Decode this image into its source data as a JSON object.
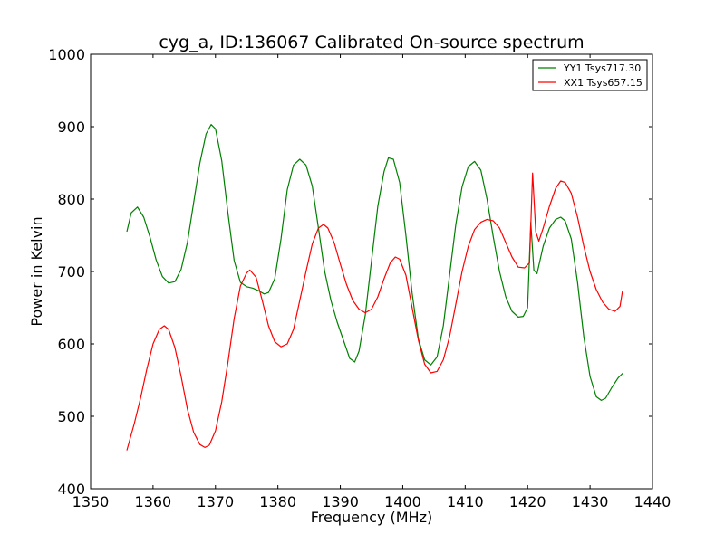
{
  "chart_data": {
    "type": "line",
    "title": "cyg_a, ID:136067 Calibrated On-source spectrum",
    "xlabel": "Frequency (MHz)",
    "ylabel": "Power in Kelvin",
    "xlim": [
      1350,
      1440
    ],
    "ylim": [
      400,
      1000
    ],
    "xticks": [
      "1350",
      "1360",
      "1370",
      "1380",
      "1390",
      "1400",
      "1410",
      "1420",
      "1430",
      "1440"
    ],
    "yticks": [
      "400",
      "500",
      "600",
      "700",
      "800",
      "900",
      "1000"
    ],
    "grid": false,
    "legend_position": "top-right",
    "series": [
      {
        "name": "YY1 Tsys717.30",
        "color": "#008000",
        "points": [
          [
            1355.8,
            755
          ],
          [
            1356.5,
            781
          ],
          [
            1357.5,
            789
          ],
          [
            1358.5,
            775
          ],
          [
            1359.5,
            748
          ],
          [
            1360.5,
            716
          ],
          [
            1361.5,
            693
          ],
          [
            1362.5,
            684
          ],
          [
            1363.5,
            686
          ],
          [
            1364.5,
            703
          ],
          [
            1365.5,
            740
          ],
          [
            1366.5,
            795
          ],
          [
            1367.5,
            850
          ],
          [
            1368.5,
            890
          ],
          [
            1369.3,
            903
          ],
          [
            1370.0,
            897
          ],
          [
            1371.0,
            853
          ],
          [
            1372.0,
            780
          ],
          [
            1373.0,
            715
          ],
          [
            1374.0,
            685
          ],
          [
            1375.0,
            679
          ],
          [
            1376.0,
            677
          ],
          [
            1377.0,
            673
          ],
          [
            1377.8,
            669
          ],
          [
            1378.5,
            671
          ],
          [
            1379.5,
            690
          ],
          [
            1380.5,
            745
          ],
          [
            1381.5,
            813
          ],
          [
            1382.5,
            847
          ],
          [
            1383.5,
            855
          ],
          [
            1384.5,
            847
          ],
          [
            1385.5,
            818
          ],
          [
            1386.5,
            760
          ],
          [
            1387.5,
            700
          ],
          [
            1388.5,
            660
          ],
          [
            1389.5,
            630
          ],
          [
            1390.5,
            605
          ],
          [
            1391.5,
            580
          ],
          [
            1392.3,
            575
          ],
          [
            1393.0,
            590
          ],
          [
            1394.0,
            640
          ],
          [
            1395.0,
            715
          ],
          [
            1396.0,
            790
          ],
          [
            1397.0,
            838
          ],
          [
            1397.7,
            857
          ],
          [
            1398.5,
            855
          ],
          [
            1399.5,
            823
          ],
          [
            1400.5,
            750
          ],
          [
            1401.5,
            670
          ],
          [
            1402.5,
            607
          ],
          [
            1403.5,
            578
          ],
          [
            1404.5,
            571
          ],
          [
            1405.5,
            582
          ],
          [
            1406.5,
            625
          ],
          [
            1407.5,
            695
          ],
          [
            1408.5,
            765
          ],
          [
            1409.5,
            817
          ],
          [
            1410.5,
            845
          ],
          [
            1411.5,
            852
          ],
          [
            1412.5,
            840
          ],
          [
            1413.5,
            800
          ],
          [
            1414.5,
            748
          ],
          [
            1415.5,
            700
          ],
          [
            1416.5,
            665
          ],
          [
            1417.5,
            645
          ],
          [
            1418.5,
            637
          ],
          [
            1419.3,
            638
          ],
          [
            1420.0,
            650
          ],
          [
            1420.5,
            768
          ],
          [
            1421.0,
            702
          ],
          [
            1421.5,
            697
          ],
          [
            1422.5,
            735
          ],
          [
            1423.5,
            760
          ],
          [
            1424.5,
            772
          ],
          [
            1425.3,
            775
          ],
          [
            1426.0,
            770
          ],
          [
            1427.0,
            745
          ],
          [
            1428.0,
            685
          ],
          [
            1429.0,
            610
          ],
          [
            1430.0,
            555
          ],
          [
            1431.0,
            527
          ],
          [
            1431.8,
            522
          ],
          [
            1432.5,
            525
          ],
          [
            1433.5,
            540
          ],
          [
            1434.5,
            553
          ],
          [
            1435.3,
            560
          ]
        ]
      },
      {
        "name": "XX1 Tsys657.15",
        "color": "#ff0000",
        "points": [
          [
            1355.8,
            453
          ],
          [
            1357.0,
            490
          ],
          [
            1358.0,
            525
          ],
          [
            1359.0,
            565
          ],
          [
            1360.0,
            600
          ],
          [
            1361.0,
            620
          ],
          [
            1361.8,
            625
          ],
          [
            1362.5,
            620
          ],
          [
            1363.5,
            595
          ],
          [
            1364.5,
            555
          ],
          [
            1365.5,
            510
          ],
          [
            1366.5,
            478
          ],
          [
            1367.5,
            461
          ],
          [
            1368.3,
            457
          ],
          [
            1369.0,
            460
          ],
          [
            1370.0,
            480
          ],
          [
            1371.0,
            520
          ],
          [
            1372.0,
            575
          ],
          [
            1373.0,
            635
          ],
          [
            1374.0,
            680
          ],
          [
            1375.0,
            698
          ],
          [
            1375.5,
            702
          ],
          [
            1376.5,
            692
          ],
          [
            1377.5,
            660
          ],
          [
            1378.5,
            625
          ],
          [
            1379.5,
            603
          ],
          [
            1380.5,
            596
          ],
          [
            1381.5,
            600
          ],
          [
            1382.5,
            620
          ],
          [
            1383.5,
            660
          ],
          [
            1384.5,
            700
          ],
          [
            1385.5,
            738
          ],
          [
            1386.5,
            760
          ],
          [
            1387.3,
            765
          ],
          [
            1388.0,
            760
          ],
          [
            1389.0,
            740
          ],
          [
            1390.0,
            710
          ],
          [
            1391.0,
            682
          ],
          [
            1392.0,
            660
          ],
          [
            1393.0,
            648
          ],
          [
            1394.0,
            643
          ],
          [
            1395.0,
            648
          ],
          [
            1396.0,
            665
          ],
          [
            1397.0,
            690
          ],
          [
            1398.0,
            712
          ],
          [
            1398.8,
            720
          ],
          [
            1399.5,
            717
          ],
          [
            1400.5,
            695
          ],
          [
            1401.5,
            650
          ],
          [
            1402.5,
            605
          ],
          [
            1403.5,
            572
          ],
          [
            1404.5,
            560
          ],
          [
            1405.5,
            562
          ],
          [
            1406.5,
            578
          ],
          [
            1407.5,
            610
          ],
          [
            1408.5,
            655
          ],
          [
            1409.5,
            700
          ],
          [
            1410.5,
            735
          ],
          [
            1411.5,
            758
          ],
          [
            1412.5,
            768
          ],
          [
            1413.5,
            772
          ],
          [
            1414.5,
            770
          ],
          [
            1415.5,
            760
          ],
          [
            1416.5,
            740
          ],
          [
            1417.5,
            720
          ],
          [
            1418.5,
            706
          ],
          [
            1419.5,
            705
          ],
          [
            1420.3,
            712
          ],
          [
            1420.8,
            836
          ],
          [
            1421.3,
            755
          ],
          [
            1421.8,
            742
          ],
          [
            1422.5,
            760
          ],
          [
            1423.5,
            790
          ],
          [
            1424.5,
            815
          ],
          [
            1425.3,
            825
          ],
          [
            1426.0,
            823
          ],
          [
            1427.0,
            808
          ],
          [
            1428.0,
            775
          ],
          [
            1429.0,
            735
          ],
          [
            1430.0,
            700
          ],
          [
            1431.0,
            675
          ],
          [
            1432.0,
            658
          ],
          [
            1433.0,
            648
          ],
          [
            1434.0,
            645
          ],
          [
            1434.8,
            652
          ],
          [
            1435.2,
            673
          ]
        ]
      }
    ]
  }
}
